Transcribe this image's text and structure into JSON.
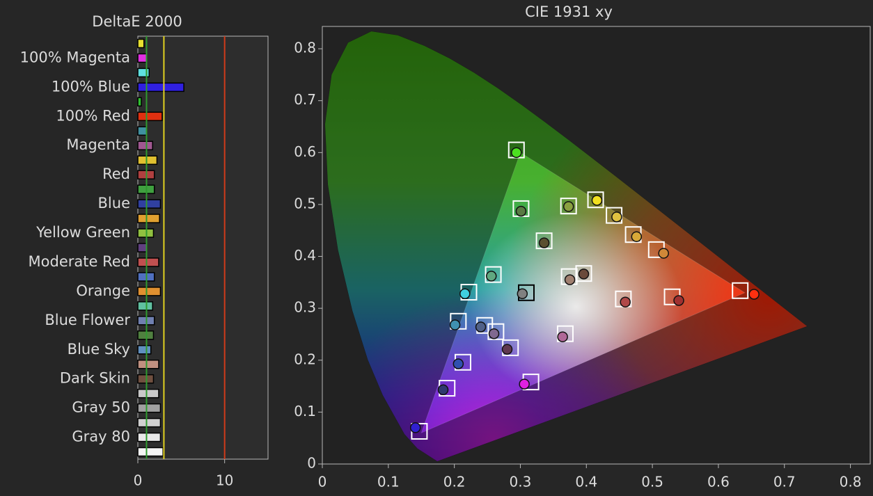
{
  "chart_data": [
    {
      "type": "bar",
      "orientation": "horizontal",
      "title": "DeltaE 2000",
      "categories": [
        null,
        "100% Magenta",
        null,
        "100% Blue",
        null,
        "100% Red",
        null,
        "Magenta",
        null,
        "Red",
        null,
        "Blue",
        null,
        "Yellow Green",
        null,
        "Moderate Red",
        null,
        "Orange",
        null,
        "Blue Flower",
        null,
        "Blue Sky",
        null,
        "Dark Skin",
        null,
        "Gray 50",
        null,
        "Gray 80",
        null
      ],
      "values": [
        0.7,
        1.0,
        1.3,
        5.3,
        0.4,
        2.8,
        1.0,
        1.7,
        2.2,
        1.9,
        1.9,
        2.6,
        2.5,
        1.8,
        1.0,
        2.4,
        1.9,
        2.6,
        1.7,
        1.9,
        1.8,
        1.5,
        2.4,
        1.8,
        2.4,
        2.6,
        2.6,
        2.6,
        2.9
      ],
      "colors": [
        "#e8e030",
        "#e030e0",
        "#60e0e0",
        "#3020e0",
        "#30c030",
        "#e03010",
        "#4090a0",
        "#a05890",
        "#e0c030",
        "#b04040",
        "#40a040",
        "#3040a0",
        "#e0a030",
        "#90c040",
        "#604080",
        "#c05050",
        "#5070c0",
        "#e09030",
        "#60c0a0",
        "#7080b0",
        "#508040",
        "#6090c0",
        "#c09080",
        "#705040",
        "#c8c8c8",
        "#a0a0a0",
        "#d0d0d0",
        "#e8e8e8",
        "#f4f4f4"
      ],
      "xlim": [
        0,
        15
      ],
      "xticks": [
        0,
        10
      ],
      "reference_lines": [
        {
          "value": 1,
          "color": "#2e9a2e"
        },
        {
          "value": 3,
          "color": "#e0d020"
        },
        {
          "value": 10,
          "color": "#d03a1a"
        }
      ]
    },
    {
      "type": "scatter",
      "title": "CIE 1931 xy",
      "xlim": [
        0,
        0.83
      ],
      "ylim": [
        0,
        0.843
      ],
      "xticks": [
        0,
        0.1,
        0.2,
        0.3,
        0.4,
        0.5,
        0.6,
        0.7,
        0.8
      ],
      "yticks": [
        0,
        0.1,
        0.2,
        0.3,
        0.4,
        0.5,
        0.6,
        0.7,
        0.8
      ],
      "locus": {
        "x": [
          0.1741,
          0.144,
          0.1241,
          0.0913,
          0.0687,
          0.0454,
          0.0235,
          0.0082,
          0.0039,
          0.0139,
          0.0389,
          0.0743,
          0.1142,
          0.1547,
          0.1929,
          0.2296,
          0.2658,
          0.3016,
          0.3373,
          0.3731,
          0.4087,
          0.4441,
          0.4788,
          0.5125,
          0.5448,
          0.5752,
          0.6029,
          0.627,
          0.6482,
          0.6658,
          0.6915,
          0.7347
        ],
        "y": [
          0.005,
          0.0297,
          0.0578,
          0.1327,
          0.2007,
          0.295,
          0.4127,
          0.5384,
          0.6548,
          0.7502,
          0.812,
          0.8338,
          0.8262,
          0.8059,
          0.7816,
          0.7543,
          0.7243,
          0.6923,
          0.6589,
          0.6245,
          0.5896,
          0.5547,
          0.5202,
          0.4866,
          0.4544,
          0.4242,
          0.3965,
          0.3725,
          0.3514,
          0.334,
          0.3083,
          0.2653
        ]
      },
      "gamut": {
        "x": [
          0.64,
          0.3,
          0.15
        ],
        "y": [
          0.33,
          0.6,
          0.06
        ]
      },
      "series": [
        {
          "marker": "square",
          "x": [
            0.294,
            0.301,
            0.373,
            0.414,
            0.442,
            0.471,
            0.506,
            0.336,
            0.259,
            0.396,
            0.374,
            0.309,
            0.222,
            0.633,
            0.456,
            0.53,
            0.206,
            0.246,
            0.263,
            0.285,
            0.368,
            0.213,
            0.316,
            0.189,
            0.147
          ],
          "y": [
            0.605,
            0.492,
            0.497,
            0.509,
            0.479,
            0.442,
            0.413,
            0.43,
            0.365,
            0.367,
            0.361,
            0.33,
            0.331,
            0.334,
            0.318,
            0.322,
            0.275,
            0.267,
            0.255,
            0.224,
            0.251,
            0.196,
            0.158,
            0.146,
            0.063
          ],
          "colors": [
            "#ffffff",
            "#ffffff",
            "#ffffff",
            "#ffffff",
            "#ffffff",
            "#ffffff",
            "#ffffff",
            "#ffffff",
            "#ffffff",
            "#ffffff",
            "#ffffff",
            "#000000",
            "#ffffff",
            "#ffffff",
            "#ffffff",
            "#ffffff",
            "#ffffff",
            "#ffffff",
            "#ffffff",
            "#ffffff",
            "#ffffff",
            "#ffffff",
            "#ffffff",
            "#ffffff",
            "#ffffff"
          ]
        },
        {
          "marker": "circle",
          "x": [
            0.294,
            0.301,
            0.373,
            0.416,
            0.446,
            0.476,
            0.517,
            0.336,
            0.256,
            0.396,
            0.375,
            0.303,
            0.216,
            0.654,
            0.459,
            0.54,
            0.201,
            0.24,
            0.26,
            0.28,
            0.364,
            0.206,
            0.306,
            0.183,
            0.141
          ],
          "y": [
            0.6,
            0.487,
            0.496,
            0.508,
            0.476,
            0.438,
            0.406,
            0.426,
            0.362,
            0.366,
            0.355,
            0.328,
            0.328,
            0.327,
            0.312,
            0.315,
            0.268,
            0.264,
            0.251,
            0.221,
            0.245,
            0.193,
            0.154,
            0.143,
            0.07
          ],
          "colors": [
            "#4ce020",
            "#5a7a44",
            "#8aa040",
            "#f0e020",
            "#e0c040",
            "#d8a838",
            "#d08838",
            "#5a5030",
            "#60a880",
            "#6a4a3a",
            "#a08070",
            "#808080",
            "#40d0e0",
            "#ff3010",
            "#b04848",
            "#a03030",
            "#4090b0",
            "#506088",
            "#806890",
            "#603850",
            "#b06898",
            "#3050b0",
            "#e020e0",
            "#303870",
            "#3020d0"
          ]
        }
      ]
    }
  ]
}
